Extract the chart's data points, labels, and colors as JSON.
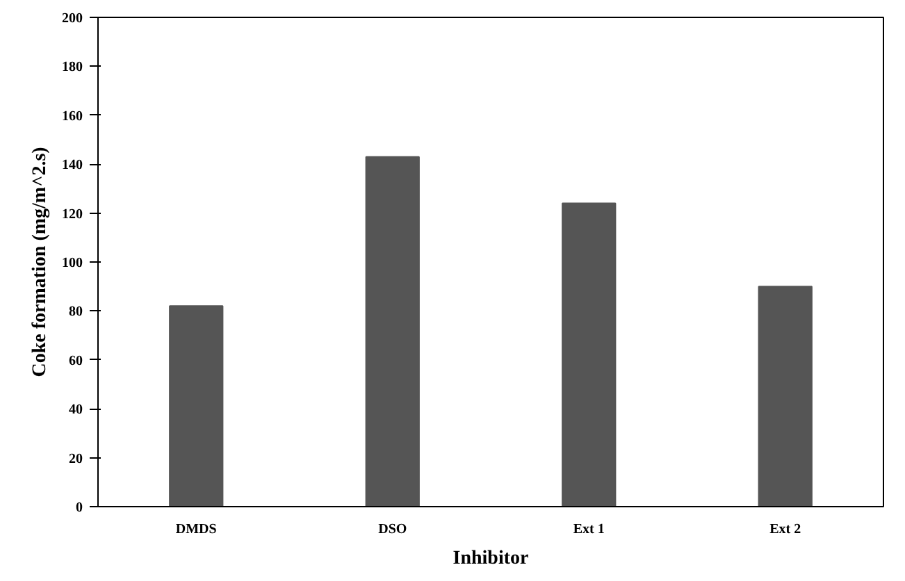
{
  "chart_data": {
    "type": "bar",
    "xlabel": "Inhibitor",
    "ylabel": "Coke formation (mg/m^2.s)",
    "categories": [
      "DMDS",
      "DSO",
      "Ext 1",
      "Ext 2"
    ],
    "values": [
      82,
      143,
      124,
      90
    ],
    "color": "#555555",
    "ylim": [
      0,
      200
    ],
    "yticks": [
      0,
      20,
      40,
      60,
      80,
      100,
      120,
      140,
      160,
      180,
      200
    ],
    "grid": false
  }
}
